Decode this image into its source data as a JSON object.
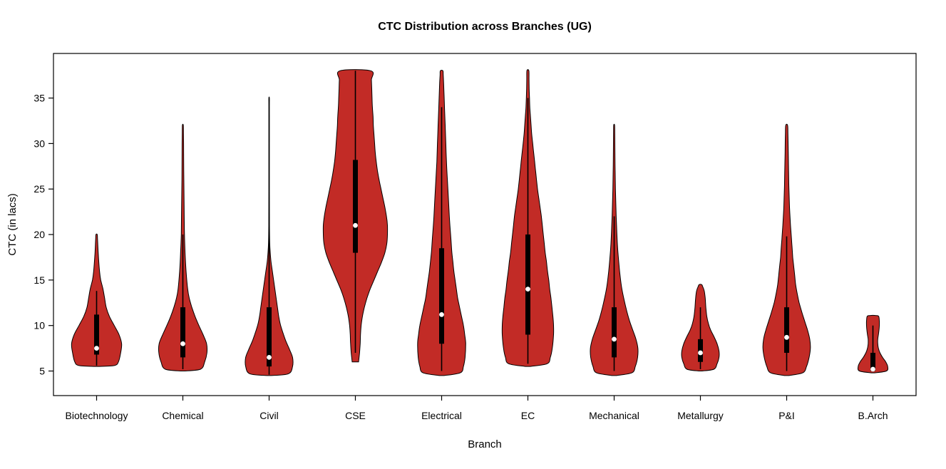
{
  "chart_data": {
    "type": "violin",
    "title": "CTC Distribution across Branches (UG)",
    "xlabel": "Branch",
    "ylabel": "CTC (in lacs)",
    "ylim": [
      2.3,
      39.9
    ],
    "yticks": [
      5,
      10,
      15,
      20,
      25,
      30,
      35
    ],
    "grid": false,
    "legend": "none",
    "colors": {
      "violin_fill": "#C22B26",
      "violin_stroke": "#000000",
      "box_color": "#000000",
      "median_dot": "#ffffff",
      "background": "#ffffff",
      "frame": "#000000"
    },
    "categories": [
      "Biotechnology",
      "Chemical",
      "Civil",
      "CSE",
      "Electrical",
      "EC",
      "Mechanical",
      "Metallurgy",
      "P&I",
      "B.Arch"
    ],
    "series": [
      {
        "name": "Biotechnology",
        "min": 5.5,
        "max": 20,
        "q1": 6.8,
        "median": 7.5,
        "q3": 11.2,
        "whisker_low": 5.6,
        "whisker_high": 13.8,
        "profile": [
          [
            5.5,
            0.05
          ],
          [
            5.6,
            0.55
          ],
          [
            6,
            0.68
          ],
          [
            7,
            0.75
          ],
          [
            8,
            0.78
          ],
          [
            9,
            0.7
          ],
          [
            10,
            0.55
          ],
          [
            11,
            0.4
          ],
          [
            12,
            0.3
          ],
          [
            13,
            0.25
          ],
          [
            14,
            0.2
          ],
          [
            15,
            0.13
          ],
          [
            16,
            0.09
          ],
          [
            18,
            0.05
          ],
          [
            19.5,
            0.03
          ],
          [
            20,
            0.02
          ]
        ]
      },
      {
        "name": "Chemical",
        "min": 5,
        "max": 32,
        "q1": 6.5,
        "median": 8.0,
        "q3": 12.0,
        "whisker_low": 5.2,
        "whisker_high": 20,
        "profile": [
          [
            5,
            0.05
          ],
          [
            5.2,
            0.55
          ],
          [
            6,
            0.68
          ],
          [
            7,
            0.75
          ],
          [
            8,
            0.74
          ],
          [
            9,
            0.63
          ],
          [
            10,
            0.5
          ],
          [
            11,
            0.38
          ],
          [
            12,
            0.28
          ],
          [
            13,
            0.2
          ],
          [
            14,
            0.15
          ],
          [
            16,
            0.1
          ],
          [
            18,
            0.07
          ],
          [
            20,
            0.05
          ],
          [
            23,
            0.04
          ],
          [
            26,
            0.03
          ],
          [
            29,
            0.025
          ],
          [
            31,
            0.02
          ],
          [
            32,
            0.015
          ]
        ]
      },
      {
        "name": "Civil",
        "min": 4.5,
        "max": 35,
        "q1": 5.5,
        "median": 6.5,
        "q3": 12.0,
        "whisker_low": 4.6,
        "whisker_high": 21,
        "profile": [
          [
            4.5,
            0.05
          ],
          [
            4.7,
            0.6
          ],
          [
            5.5,
            0.73
          ],
          [
            6.5,
            0.73
          ],
          [
            7.5,
            0.62
          ],
          [
            8.5,
            0.5
          ],
          [
            10,
            0.36
          ],
          [
            11,
            0.3
          ],
          [
            12,
            0.26
          ],
          [
            13,
            0.22
          ],
          [
            14,
            0.18
          ],
          [
            15,
            0.14
          ],
          [
            16,
            0.1
          ],
          [
            17,
            0.06
          ],
          [
            18,
            0.035
          ],
          [
            19,
            0.02
          ],
          [
            21,
            0.012
          ],
          [
            25,
            0.01
          ],
          [
            30,
            0.01
          ],
          [
            34,
            0.01
          ],
          [
            35,
            0.008
          ]
        ]
      },
      {
        "name": "CSE",
        "min": 6,
        "max": 38,
        "q1": 18.0,
        "median": 21.0,
        "q3": 28.2,
        "whisker_low": 7,
        "whisker_high": 38,
        "profile": [
          [
            6,
            0.1
          ],
          [
            7,
            0.13
          ],
          [
            8,
            0.15
          ],
          [
            9,
            0.16
          ],
          [
            10,
            0.18
          ],
          [
            11,
            0.22
          ],
          [
            12,
            0.28
          ],
          [
            13,
            0.36
          ],
          [
            14,
            0.46
          ],
          [
            15,
            0.58
          ],
          [
            16,
            0.7
          ],
          [
            17,
            0.82
          ],
          [
            18,
            0.92
          ],
          [
            19,
            0.98
          ],
          [
            20,
            1.0
          ],
          [
            21,
            1.0
          ],
          [
            22,
            0.97
          ],
          [
            23,
            0.92
          ],
          [
            24,
            0.86
          ],
          [
            25,
            0.8
          ],
          [
            26,
            0.74
          ],
          [
            27,
            0.69
          ],
          [
            28,
            0.65
          ],
          [
            29,
            0.62
          ],
          [
            30,
            0.6
          ],
          [
            31,
            0.58
          ],
          [
            32,
            0.56
          ],
          [
            33,
            0.55
          ],
          [
            34,
            0.53
          ],
          [
            35,
            0.52
          ],
          [
            36,
            0.51
          ],
          [
            37,
            0.5
          ],
          [
            38,
            0.48
          ]
        ]
      },
      {
        "name": "Electrical",
        "min": 4.5,
        "max": 38,
        "q1": 8.0,
        "median": 11.2,
        "q3": 18.5,
        "whisker_low": 5,
        "whisker_high": 34,
        "profile": [
          [
            4.5,
            0.06
          ],
          [
            4.8,
            0.58
          ],
          [
            5.5,
            0.68
          ],
          [
            6.5,
            0.73
          ],
          [
            8,
            0.75
          ],
          [
            9,
            0.72
          ],
          [
            10,
            0.68
          ],
          [
            11,
            0.62
          ],
          [
            12,
            0.56
          ],
          [
            13,
            0.5
          ],
          [
            14,
            0.46
          ],
          [
            15,
            0.42
          ],
          [
            16,
            0.38
          ],
          [
            17,
            0.35
          ],
          [
            18,
            0.32
          ],
          [
            19,
            0.3
          ],
          [
            20,
            0.28
          ],
          [
            22,
            0.24
          ],
          [
            24,
            0.21
          ],
          [
            26,
            0.18
          ],
          [
            28,
            0.15
          ],
          [
            30,
            0.13
          ],
          [
            32,
            0.11
          ],
          [
            34,
            0.09
          ],
          [
            36,
            0.07
          ],
          [
            37.5,
            0.05
          ],
          [
            38,
            0.04
          ]
        ]
      },
      {
        "name": "EC",
        "min": 5.5,
        "max": 38,
        "q1": 9.0,
        "median": 14.0,
        "q3": 20.0,
        "whisker_low": 5.8,
        "whisker_high": 35,
        "profile": [
          [
            5.5,
            0.08
          ],
          [
            5.8,
            0.6
          ],
          [
            6.5,
            0.7
          ],
          [
            7.5,
            0.76
          ],
          [
            9,
            0.8
          ],
          [
            10,
            0.8
          ],
          [
            11,
            0.78
          ],
          [
            12,
            0.75
          ],
          [
            13,
            0.72
          ],
          [
            14,
            0.68
          ],
          [
            15,
            0.65
          ],
          [
            16,
            0.61
          ],
          [
            17,
            0.58
          ],
          [
            18,
            0.54
          ],
          [
            19,
            0.51
          ],
          [
            20,
            0.48
          ],
          [
            21,
            0.45
          ],
          [
            22,
            0.42
          ],
          [
            23,
            0.38
          ],
          [
            24,
            0.34
          ],
          [
            25,
            0.3
          ],
          [
            26,
            0.27
          ],
          [
            27,
            0.24
          ],
          [
            28,
            0.21
          ],
          [
            29,
            0.18
          ],
          [
            30,
            0.15
          ],
          [
            31,
            0.12
          ],
          [
            32,
            0.1
          ],
          [
            33,
            0.08
          ],
          [
            34,
            0.06
          ],
          [
            35,
            0.05
          ],
          [
            36,
            0.04
          ],
          [
            37,
            0.035
          ],
          [
            38,
            0.03
          ]
        ]
      },
      {
        "name": "Mechanical",
        "min": 4.5,
        "max": 32,
        "q1": 6.5,
        "median": 8.5,
        "q3": 12.0,
        "whisker_low": 5,
        "whisker_high": 22,
        "profile": [
          [
            4.5,
            0.06
          ],
          [
            4.8,
            0.55
          ],
          [
            5.5,
            0.66
          ],
          [
            6.5,
            0.73
          ],
          [
            7.5,
            0.74
          ],
          [
            8.5,
            0.68
          ],
          [
            9.5,
            0.58
          ],
          [
            10.5,
            0.48
          ],
          [
            11.5,
            0.4
          ],
          [
            12.5,
            0.33
          ],
          [
            13.5,
            0.27
          ],
          [
            14.5,
            0.22
          ],
          [
            16,
            0.17
          ],
          [
            17.5,
            0.13
          ],
          [
            19,
            0.1
          ],
          [
            21,
            0.075
          ],
          [
            23,
            0.055
          ],
          [
            25,
            0.04
          ],
          [
            27,
            0.03
          ],
          [
            29,
            0.025
          ],
          [
            31,
            0.02
          ],
          [
            32,
            0.015
          ]
        ]
      },
      {
        "name": "Metallurgy",
        "min": 5,
        "max": 14.5,
        "q1": 6.0,
        "median": 7.0,
        "q3": 8.5,
        "whisker_low": 5.2,
        "whisker_high": 12,
        "profile": [
          [
            5,
            0.05
          ],
          [
            5.2,
            0.42
          ],
          [
            5.8,
            0.52
          ],
          [
            6.5,
            0.58
          ],
          [
            7.2,
            0.58
          ],
          [
            8,
            0.52
          ],
          [
            8.8,
            0.42
          ],
          [
            9.5,
            0.32
          ],
          [
            10.2,
            0.25
          ],
          [
            11,
            0.2
          ],
          [
            12,
            0.17
          ],
          [
            13,
            0.15
          ],
          [
            13.8,
            0.12
          ],
          [
            14.3,
            0.07
          ],
          [
            14.5,
            0.04
          ]
        ]
      },
      {
        "name": "P&I",
        "min": 4.5,
        "max": 32,
        "q1": 7.0,
        "median": 8.7,
        "q3": 12.0,
        "whisker_low": 5,
        "whisker_high": 19.8,
        "profile": [
          [
            4.5,
            0.06
          ],
          [
            4.8,
            0.5
          ],
          [
            5.5,
            0.62
          ],
          [
            6.5,
            0.7
          ],
          [
            7.5,
            0.74
          ],
          [
            8.5,
            0.72
          ],
          [
            9.5,
            0.65
          ],
          [
            10.5,
            0.56
          ],
          [
            11.5,
            0.47
          ],
          [
            12.5,
            0.39
          ],
          [
            13.5,
            0.33
          ],
          [
            14.5,
            0.28
          ],
          [
            15.5,
            0.25
          ],
          [
            16.5,
            0.22
          ],
          [
            17.5,
            0.19
          ],
          [
            18.5,
            0.17
          ],
          [
            19.5,
            0.15
          ],
          [
            21,
            0.12
          ],
          [
            23,
            0.09
          ],
          [
            25,
            0.07
          ],
          [
            27,
            0.06
          ],
          [
            29,
            0.05
          ],
          [
            31,
            0.04
          ],
          [
            32,
            0.03
          ]
        ]
      },
      {
        "name": "B.Arch",
        "min": 4.8,
        "max": 11.1,
        "q1": 5.0,
        "median": 5.2,
        "q3": 7.0,
        "whisker_low": 4.9,
        "whisker_high": 10,
        "profile": [
          [
            4.8,
            0.05
          ],
          [
            5.0,
            0.42
          ],
          [
            5.5,
            0.46
          ],
          [
            6.0,
            0.4
          ],
          [
            6.5,
            0.3
          ],
          [
            7.0,
            0.22
          ],
          [
            7.5,
            0.17
          ],
          [
            8.0,
            0.15
          ],
          [
            8.5,
            0.15
          ],
          [
            9.0,
            0.17
          ],
          [
            9.5,
            0.19
          ],
          [
            10,
            0.2
          ],
          [
            10.5,
            0.2
          ],
          [
            11,
            0.18
          ],
          [
            11.1,
            0.1
          ]
        ]
      }
    ]
  }
}
